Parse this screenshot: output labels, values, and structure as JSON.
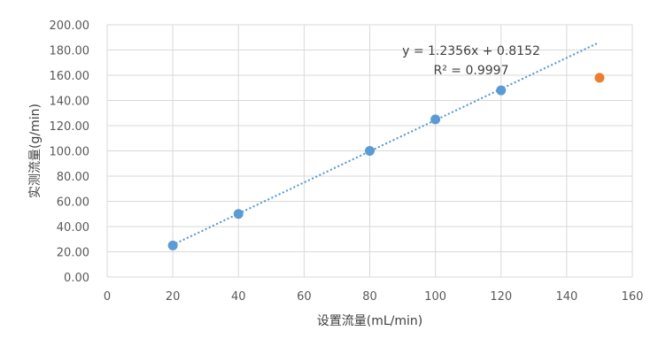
{
  "chart_data": {
    "type": "scatter",
    "xlabel": "设置流量(mL/min)",
    "ylabel": "实测流量(g/min)",
    "xlim": [
      0,
      160
    ],
    "ylim": [
      0,
      200
    ],
    "x_ticks": [
      0,
      20,
      40,
      60,
      80,
      100,
      120,
      140,
      160
    ],
    "y_ticks": [
      0,
      20,
      40,
      60,
      80,
      100,
      120,
      140,
      160,
      180,
      200
    ],
    "y_tick_labels": [
      "0.00",
      "20.00",
      "40.00",
      "60.00",
      "80.00",
      "100.00",
      "120.00",
      "140.00",
      "160.00",
      "180.00",
      "200.00"
    ],
    "grid": true,
    "series": [
      {
        "color": "#5b9bd5",
        "points": [
          {
            "x": 20,
            "y": 25
          },
          {
            "x": 40,
            "y": 50
          },
          {
            "x": 80,
            "y": 100
          },
          {
            "x": 100,
            "y": 125
          },
          {
            "x": 120,
            "y": 148
          }
        ]
      },
      {
        "color": "#ed7d31",
        "points": [
          {
            "x": 150,
            "y": 158
          }
        ]
      }
    ],
    "trendline": {
      "type": "linear",
      "slope": 1.2356,
      "intercept": 0.8152,
      "x_range": [
        20,
        150
      ],
      "color": "#5b9bd5",
      "style": "dotted",
      "equation": "y = 1.2356x + 0.8152",
      "r_squared": "R² = 0.9997"
    }
  }
}
